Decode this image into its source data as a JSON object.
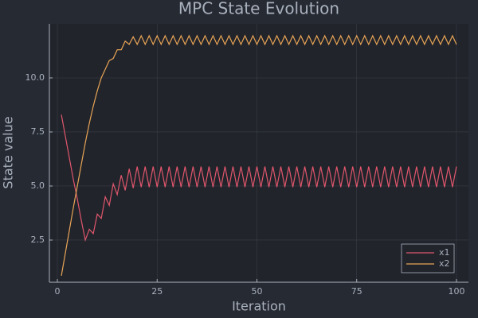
{
  "chart_data": {
    "type": "line",
    "title": "MPC State Evolution",
    "x_label": "Iteration",
    "y_label": "State value",
    "x": [
      1,
      2,
      3,
      4,
      5,
      6,
      7,
      8,
      9,
      10,
      11,
      12,
      13,
      14,
      15,
      16,
      17,
      18,
      19,
      20,
      21,
      22,
      23,
      24,
      25,
      26,
      27,
      28,
      29,
      30,
      31,
      32,
      33,
      34,
      35,
      36,
      37,
      38,
      39,
      40,
      41,
      42,
      43,
      44,
      45,
      46,
      47,
      48,
      49,
      50,
      51,
      52,
      53,
      54,
      55,
      56,
      57,
      58,
      59,
      60,
      61,
      62,
      63,
      64,
      65,
      66,
      67,
      68,
      69,
      70,
      71,
      72,
      73,
      74,
      75,
      76,
      77,
      78,
      79,
      80,
      81,
      82,
      83,
      84,
      85,
      86,
      87,
      88,
      89,
      90,
      91,
      92,
      93,
      94,
      95,
      96,
      97,
      98,
      99,
      100
    ],
    "series": [
      {
        "name": "x1",
        "color": "#e0566c",
        "values": [
          8.3,
          7.3,
          6.3,
          5.3,
          4.4,
          3.4,
          2.5,
          3.0,
          2.8,
          3.7,
          3.5,
          4.5,
          4.1,
          5.1,
          4.6,
          5.5,
          4.8,
          5.8,
          4.9,
          5.9,
          4.95,
          5.9,
          4.95,
          5.9,
          4.95,
          5.9,
          4.95,
          5.9,
          4.95,
          5.9,
          4.95,
          5.9,
          4.95,
          5.9,
          4.95,
          5.9,
          4.95,
          5.9,
          4.95,
          5.9,
          4.95,
          5.9,
          4.95,
          5.9,
          4.95,
          5.9,
          4.95,
          5.9,
          4.95,
          5.9,
          4.95,
          5.9,
          4.95,
          5.9,
          4.95,
          5.9,
          4.95,
          5.9,
          4.95,
          5.9,
          4.95,
          5.9,
          4.95,
          5.9,
          4.95,
          5.9,
          4.95,
          5.9,
          4.95,
          5.9,
          4.95,
          5.9,
          4.95,
          5.9,
          4.95,
          5.9,
          4.95,
          5.9,
          4.95,
          5.9,
          4.95,
          5.9,
          4.95,
          5.9,
          4.95,
          5.9,
          4.95,
          5.9,
          4.95,
          5.9,
          4.95,
          5.9,
          4.95,
          5.9,
          4.95,
          5.9,
          4.95,
          5.9,
          4.95,
          5.9
        ]
      },
      {
        "name": "x2",
        "color": "#e8a456",
        "values": [
          0.85,
          1.9,
          2.95,
          4.0,
          5.0,
          6.0,
          7.0,
          7.9,
          8.7,
          9.4,
          10.0,
          10.4,
          10.8,
          10.9,
          11.3,
          11.3,
          11.7,
          11.55,
          11.9,
          11.55,
          11.95,
          11.55,
          11.95,
          11.55,
          11.95,
          11.55,
          11.95,
          11.55,
          11.95,
          11.55,
          11.95,
          11.55,
          11.95,
          11.55,
          11.95,
          11.55,
          11.95,
          11.55,
          11.95,
          11.55,
          11.95,
          11.55,
          11.95,
          11.55,
          11.95,
          11.55,
          11.95,
          11.55,
          11.95,
          11.55,
          11.95,
          11.55,
          11.95,
          11.55,
          11.95,
          11.55,
          11.95,
          11.55,
          11.95,
          11.55,
          11.95,
          11.55,
          11.95,
          11.55,
          11.95,
          11.55,
          11.95,
          11.55,
          11.95,
          11.55,
          11.95,
          11.55,
          11.95,
          11.55,
          11.95,
          11.55,
          11.95,
          11.55,
          11.95,
          11.55,
          11.95,
          11.55,
          11.95,
          11.55,
          11.95,
          11.55,
          11.95,
          11.55,
          11.95,
          11.55,
          11.95,
          11.55,
          11.95,
          11.55,
          11.95,
          11.55,
          11.95,
          11.55,
          11.95,
          11.55
        ]
      }
    ],
    "xlim": [
      -2,
      103
    ],
    "xticks": [
      0,
      25,
      50,
      75,
      100
    ],
    "ylim": [
      0.55,
      12.5
    ],
    "yticks": [
      2.5,
      {
        "value": 5,
        "label": "5.0"
      },
      7.5,
      {
        "value": 10,
        "label": "10.0"
      }
    ],
    "grid": true,
    "legend": "bottom-right"
  }
}
